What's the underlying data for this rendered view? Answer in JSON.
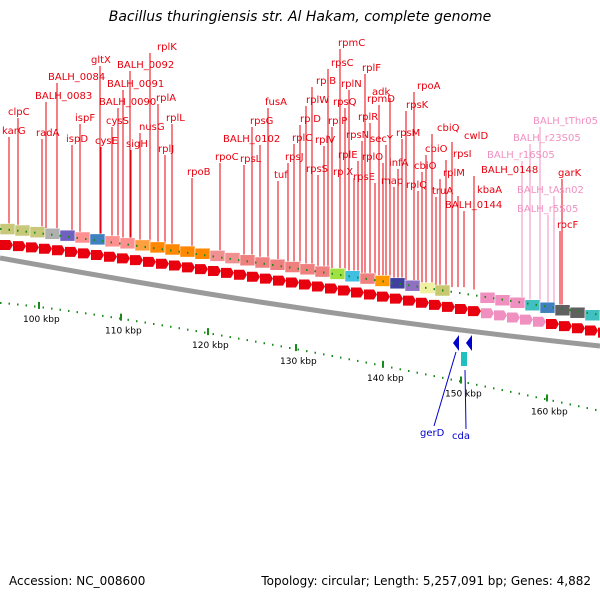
{
  "title": "Bacillus thuringiensis str. Al Hakam, complete genome",
  "footer": {
    "accession": "Accession: NC_008600",
    "summary": "Topology: circular; Length: 5,257,091 bp; Genes: 4,882"
  },
  "colors": {
    "gene": "#e8000e",
    "rna": "#f090c0",
    "minus_gene": "#0000cc",
    "tick": "#1a8a1a",
    "backbone": "#808080"
  },
  "scale_labels": [
    "100 kbp",
    "110 kbp",
    "120 kbp",
    "130 kbp",
    "140 kbp",
    "150 kbp",
    "160 kbp"
  ],
  "genes_top": [
    "karG",
    "clpC",
    "radA",
    "BALH_0083",
    "BALH_0084",
    "ispD",
    "ispF",
    "gltX",
    "cysE",
    "cysS",
    "BALH_0090",
    "BALH_0091",
    "BALH_0092",
    "sigH",
    "nusG",
    "rplK",
    "rplA",
    "rplJ",
    "rplL",
    "rpoB",
    "rpoC",
    "rpsL",
    "rpsG",
    "BALH_0102",
    "fusA",
    "tuf",
    "rpsJ",
    "rplC",
    "rplD",
    "rplW",
    "rplB",
    "rpsS",
    "rplV",
    "rpsC",
    "rplP",
    "rpmC",
    "rpsQ",
    "rplN",
    "rplX",
    "rplE",
    "rpsN",
    "rplF",
    "rplR",
    "rpsE",
    "rpmD",
    "rplO",
    "secY",
    "adk",
    "map",
    "infA",
    "rpsM",
    "rpsK",
    "rpoA",
    "rplQ",
    "cbiO",
    "cbiO",
    "cbiQ",
    "truA",
    "rplM",
    "rpsI",
    "cwlD",
    "kbaA",
    "BALH_0144",
    "BALH_0148"
  ],
  "rna_labels": [
    "BALH_tThr05",
    "BALH_r23S05",
    "BALH_r16S05",
    "BALH_tAsn02",
    "BALH_r5S05"
  ],
  "genes_right": [
    "garK",
    "rocF"
  ],
  "genes_minus": [
    "gerD",
    "cda"
  ]
}
